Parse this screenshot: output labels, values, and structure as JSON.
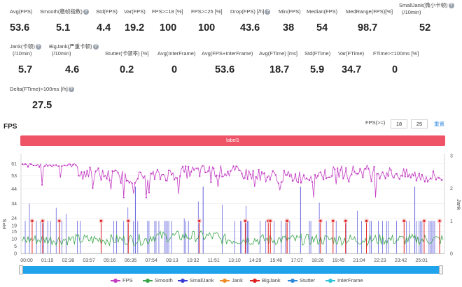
{
  "stats_row1": [
    {
      "label": "Avg(FPS)",
      "value": "53.6",
      "help": false
    },
    {
      "label": "Smooth(稳帧指数)",
      "value": "5.1",
      "help": true
    },
    {
      "label": "Std(FPS)",
      "value": "4.4",
      "help": false
    },
    {
      "label": "Var(FPS)",
      "value": "19.2",
      "help": false
    },
    {
      "label": "FPS>=18 [%]",
      "value": "100",
      "help": false
    },
    {
      "label": "FPS>=25 [%]",
      "value": "100",
      "help": false
    },
    {
      "label": "Drop(FPS) [/h]",
      "value": "43.6",
      "help": true
    },
    {
      "label": "Min(FPS)",
      "value": "38",
      "help": false
    },
    {
      "label": "Median(FPS)",
      "value": "54",
      "help": false
    },
    {
      "label": "MedRange(FPS)[%]",
      "value": "98.7",
      "help": false
    },
    {
      "label": "SmallJank(微小卡顿)",
      "label2": "(/10min)",
      "value": "52",
      "help": true
    }
  ],
  "stats_row2": [
    {
      "label": "Jank(卡顿)",
      "label2": "(/10min)",
      "value": "5.7",
      "help": true
    },
    {
      "label": "BigJank(严重卡顿)",
      "label2": "(/10min)",
      "value": "4.6",
      "help": true
    },
    {
      "label": "Stutter(卡顿率) [%]",
      "value": "0.2",
      "help": false
    },
    {
      "label": "Avg(InterFrame)",
      "value": "0",
      "help": false
    },
    {
      "label": "Avg(FPS+InterFrame)",
      "value": "53.6",
      "help": false
    },
    {
      "label": "Avg(FTime) [ms]",
      "value": "18.7",
      "help": false
    },
    {
      "label": "Std(FTime)",
      "value": "5.9",
      "help": false
    },
    {
      "label": "Var(FTime)",
      "value": "34.7",
      "help": false
    },
    {
      "label": "FTime>=100ms [%]",
      "value": "0",
      "help": false
    }
  ],
  "stats_row3": [
    {
      "label": "Delta(FTime)>100ms [/h]",
      "value": "27.5",
      "help": true
    }
  ],
  "section_title": "FPS",
  "fps_threshold": {
    "label": "FPS(>=)",
    "value1": "18",
    "value2": "25",
    "reset": "重置"
  },
  "label_bar": "label1",
  "chart_data": {
    "type": "line",
    "x_ticks": [
      "00:00",
      "01:19",
      "02:38",
      "03:57",
      "05:16",
      "06:35",
      "07:54",
      "09:13",
      "10:32",
      "11:51",
      "13:10",
      "14:29",
      "15:48",
      "17:07",
      "18:26",
      "19:45",
      "21:04",
      "22:23",
      "23:42",
      "25:01"
    ],
    "y_left": {
      "label": "FPS",
      "ticks": [
        0,
        5,
        10,
        15,
        19,
        24,
        34,
        44,
        53,
        61
      ]
    },
    "y_right": {
      "label": "Jank",
      "ticks": [
        0,
        1,
        2,
        3
      ]
    },
    "series": [
      {
        "name": "FPS",
        "color": "#c33dc3",
        "approx_mean": 53.6,
        "min": 38
      },
      {
        "name": "Smooth",
        "color": "#3aa648"
      },
      {
        "name": "SmallJank",
        "color": "#3b3bd6"
      },
      {
        "name": "Jank",
        "color": "#f08a24"
      },
      {
        "name": "BigJank",
        "color": "#e02020"
      },
      {
        "name": "Stutter",
        "color": "#2f88d8"
      },
      {
        "name": "InterFrame",
        "color": "#2fc4d8"
      }
    ]
  }
}
